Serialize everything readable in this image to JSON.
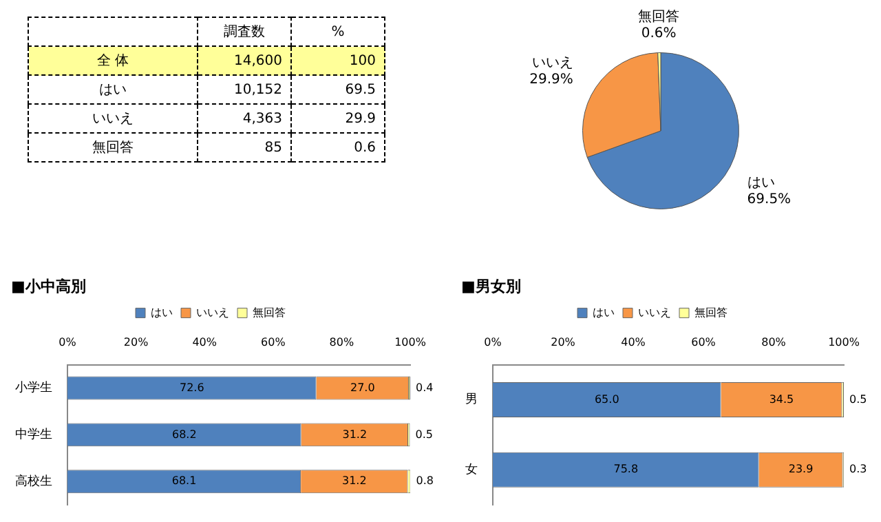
{
  "chart_data": [
    {
      "type": "other",
      "categories": [
        "全 体",
        "はい",
        "いいえ",
        "無回答"
      ],
      "series": [
        {
          "name": "調査数",
          "values": [
            14600,
            10152,
            4363,
            85
          ],
          "value_labels": [
            "14,600",
            "10,152",
            "4,363",
            "85"
          ]
        },
        {
          "name": "%",
          "values": [
            100,
            69.5,
            29.9,
            0.6
          ],
          "value_labels": [
            "100",
            "69.5",
            "29.9",
            "0.6"
          ]
        }
      ],
      "data_labels": true
    },
    {
      "type": "pie",
      "categories": [
        "はい",
        "いいえ",
        "無回答"
      ],
      "values": [
        69.5,
        29.9,
        0.6
      ],
      "colors": [
        "#4f81bd",
        "#f79646",
        "#ffff99"
      ],
      "value_labels": [
        "69.5%",
        "29.9%",
        "0.6%"
      ],
      "legend": false
    },
    {
      "type": "bar",
      "title": "■小中高別",
      "orientation": "horizontal",
      "stacked": true,
      "categories": [
        "小学生",
        "中学生",
        "高校生"
      ],
      "series": [
        {
          "name": "はい",
          "color": "#4f81bd",
          "values": [
            72.6,
            68.2,
            68.1
          ],
          "value_labels": [
            "72.6",
            "68.2",
            "68.1"
          ]
        },
        {
          "name": "いいえ",
          "color": "#f79646",
          "values": [
            27.0,
            31.2,
            31.2
          ],
          "value_labels": [
            "27.0",
            "31.2",
            "31.2"
          ]
        },
        {
          "name": "無回答",
          "color": "#ffff99",
          "values": [
            0.4,
            0.5,
            0.8
          ],
          "value_labels": [
            "0.4",
            "0.5",
            "0.8"
          ]
        }
      ],
      "xlim": [
        0,
        100
      ],
      "xticks": [
        {
          "value": 0,
          "label": "0%"
        },
        {
          "value": 20,
          "label": "20%"
        },
        {
          "value": 40,
          "label": "40%"
        },
        {
          "value": 60,
          "label": "60%"
        },
        {
          "value": 80,
          "label": "80%"
        },
        {
          "value": 100,
          "label": "100%"
        }
      ],
      "grid": false,
      "legend": "top"
    },
    {
      "type": "bar",
      "title": "■男女別",
      "orientation": "horizontal",
      "stacked": true,
      "categories": [
        "男",
        "女"
      ],
      "series": [
        {
          "name": "はい",
          "color": "#4f81bd",
          "values": [
            65.0,
            75.8
          ],
          "value_labels": [
            "65.0",
            "75.8"
          ]
        },
        {
          "name": "いいえ",
          "color": "#f79646",
          "values": [
            34.5,
            23.9
          ],
          "value_labels": [
            "34.5",
            "23.9"
          ]
        },
        {
          "name": "無回答",
          "color": "#ffff99",
          "values": [
            0.5,
            0.3
          ],
          "value_labels": [
            "0.5",
            "0.3"
          ]
        }
      ],
      "xlim": [
        0,
        100
      ],
      "xticks": [
        {
          "value": 0,
          "label": "0%"
        },
        {
          "value": 20,
          "label": "20%"
        },
        {
          "value": 40,
          "label": "40%"
        },
        {
          "value": 60,
          "label": "60%"
        },
        {
          "value": 80,
          "label": "80%"
        },
        {
          "value": 100,
          "label": "100%"
        }
      ],
      "grid": false,
      "legend": "top"
    }
  ]
}
